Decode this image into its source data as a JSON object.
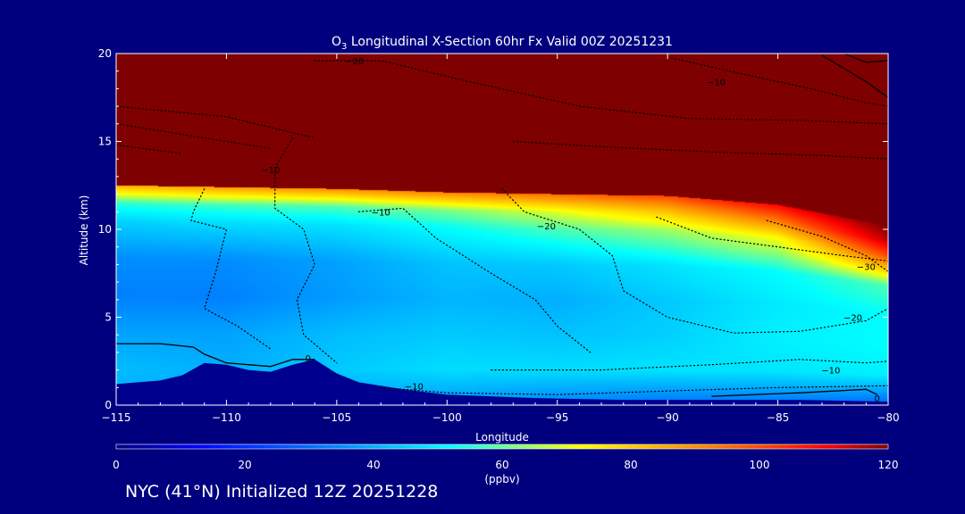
{
  "chart_data": {
    "type": "heatmap",
    "title_prefix": "O",
    "title_subscript": "3",
    "title_rest": " Longitudinal X-Section 60hr  Fx Valid 00Z 20251231",
    "xlabel": "Longitude",
    "ylabel": "Altitude (km)",
    "xlim": [
      -115,
      -80
    ],
    "ylim": [
      0,
      20
    ],
    "x_ticks": [
      -115,
      -110,
      -105,
      -100,
      -95,
      -90,
      -85,
      -80
    ],
    "x_tick_labels": [
      "−115",
      "−110",
      "−105",
      "−100",
      "−95",
      "−90",
      "−85",
      "−80"
    ],
    "y_ticks": [
      0,
      5,
      10,
      15,
      20
    ],
    "y_tick_labels": [
      "0",
      "5",
      "10",
      "15",
      "20"
    ],
    "colorbar": {
      "min": 0,
      "max": 120,
      "ticks": [
        0,
        20,
        40,
        60,
        80,
        100,
        120
      ],
      "tick_labels": [
        "0",
        "20",
        "40",
        "60",
        "80",
        "100",
        "120"
      ],
      "unit_label": "(ppbv)",
      "stops": [
        {
          "v": 0,
          "c": "#00007f"
        },
        {
          "v": 13,
          "c": "#0000ff"
        },
        {
          "v": 33,
          "c": "#0080ff"
        },
        {
          "v": 52,
          "c": "#00ffff"
        },
        {
          "v": 72,
          "c": "#ffff00"
        },
        {
          "v": 92,
          "c": "#ff8000"
        },
        {
          "v": 110,
          "c": "#ff0000"
        },
        {
          "v": 120,
          "c": "#7f0000"
        }
      ]
    },
    "ozone_field": {
      "description_note": "ozone mixing ratio (ppbv) estimated on a lon/alt grid",
      "tropopause_km": [
        {
          "lon": -115,
          "alt": 12.5
        },
        {
          "lon": -110,
          "alt": 12.4
        },
        {
          "lon": -105,
          "alt": 12.3
        },
        {
          "lon": -100,
          "alt": 12.1
        },
        {
          "lon": -95,
          "alt": 12.0
        },
        {
          "lon": -90,
          "alt": 11.9
        },
        {
          "lon": -85,
          "alt": 11.4
        },
        {
          "lon": -80,
          "alt": 10.2
        }
      ],
      "stratosphere_value": 125,
      "profiles": [
        {
          "lon": -115,
          "alt": [
            0,
            2,
            4,
            6,
            8,
            10,
            11,
            12
          ],
          "val": [
            40,
            42,
            38,
            33,
            35,
            45,
            55,
            85
          ]
        },
        {
          "lon": -110,
          "alt": [
            0,
            2,
            4,
            6,
            8,
            10,
            11,
            12
          ],
          "val": [
            38,
            40,
            38,
            33,
            35,
            47,
            57,
            88
          ]
        },
        {
          "lon": -105,
          "alt": [
            0,
            2,
            4,
            6,
            8,
            10,
            11,
            12
          ],
          "val": [
            38,
            44,
            42,
            37,
            38,
            48,
            58,
            90
          ]
        },
        {
          "lon": -100,
          "alt": [
            0,
            2,
            4,
            6,
            8,
            10,
            11,
            12
          ],
          "val": [
            36,
            47,
            44,
            41,
            43,
            52,
            62,
            92
          ]
        },
        {
          "lon": -95,
          "alt": [
            0,
            2,
            4,
            6,
            8,
            10,
            11,
            12
          ],
          "val": [
            33,
            47,
            43,
            40,
            44,
            58,
            70,
            95
          ]
        },
        {
          "lon": -90,
          "alt": [
            0,
            2,
            4,
            6,
            8,
            10,
            11,
            12
          ],
          "val": [
            30,
            48,
            45,
            44,
            48,
            64,
            80,
            100
          ]
        },
        {
          "lon": -85,
          "alt": [
            0,
            2,
            4,
            6,
            8,
            10,
            11,
            12
          ],
          "val": [
            30,
            48,
            50,
            49,
            52,
            72,
            92,
            110
          ]
        },
        {
          "lon": -80,
          "alt": [
            0,
            2,
            4,
            6,
            8,
            10,
            11,
            12
          ],
          "val": [
            28,
            50,
            52,
            52,
            58,
            100,
            115,
            120
          ]
        }
      ]
    },
    "terrain_km": [
      {
        "lon": -115,
        "alt": 1.2
      },
      {
        "lon": -114,
        "alt": 1.3
      },
      {
        "lon": -113,
        "alt": 1.4
      },
      {
        "lon": -112,
        "alt": 1.7
      },
      {
        "lon": -111,
        "alt": 2.4
      },
      {
        "lon": -110,
        "alt": 2.3
      },
      {
        "lon": -109,
        "alt": 2.0
      },
      {
        "lon": -108,
        "alt": 1.9
      },
      {
        "lon": -107,
        "alt": 2.3
      },
      {
        "lon": -106,
        "alt": 2.6
      },
      {
        "lon": -105,
        "alt": 1.8
      },
      {
        "lon": -104,
        "alt": 1.3
      },
      {
        "lon": -102,
        "alt": 0.9
      },
      {
        "lon": -100,
        "alt": 0.6
      },
      {
        "lon": -96,
        "alt": 0.4
      },
      {
        "lon": -92,
        "alt": 0.3
      },
      {
        "lon": -88,
        "alt": 0.3
      },
      {
        "lon": -84,
        "alt": 0.3
      },
      {
        "lon": -80,
        "alt": 0.2
      }
    ],
    "contour_lines": [
      {
        "style": "solid",
        "points": [
          {
            "lon": -115,
            "alt": 3.5
          },
          {
            "lon": -113,
            "alt": 3.5
          },
          {
            "lon": -111.5,
            "alt": 3.3
          },
          {
            "lon": -111,
            "alt": 2.9
          },
          {
            "lon": -110,
            "alt": 2.4
          },
          {
            "lon": -109,
            "alt": 2.3
          },
          {
            "lon": -108,
            "alt": 2.2
          },
          {
            "lon": -107,
            "alt": 2.6
          },
          {
            "lon": -106,
            "alt": 2.6
          }
        ]
      },
      {
        "style": "solid",
        "points": [
          {
            "lon": -88,
            "alt": 0.5
          },
          {
            "lon": -84,
            "alt": 0.7
          },
          {
            "lon": -81,
            "alt": 0.9
          },
          {
            "lon": -80.5,
            "alt": 0.6
          }
        ]
      },
      {
        "style": "solid",
        "points": [
          {
            "lon": -82,
            "alt": 20
          },
          {
            "lon": -81,
            "alt": 19.5
          },
          {
            "lon": -80,
            "alt": 19.6
          }
        ]
      },
      {
        "style": "solid",
        "points": [
          {
            "lon": -83,
            "alt": 19.9
          },
          {
            "lon": -81,
            "alt": 18.4
          },
          {
            "lon": -80,
            "alt": 17.5
          }
        ]
      },
      {
        "style": "dotted",
        "points": [
          {
            "lon": -103,
            "alt": 1.0
          },
          {
            "lon": -100,
            "alt": 0.7
          },
          {
            "lon": -95,
            "alt": 0.6
          },
          {
            "lon": -90,
            "alt": 0.8
          },
          {
            "lon": -85,
            "alt": 1.0
          },
          {
            "lon": -80,
            "alt": 1.1
          }
        ]
      },
      {
        "style": "dotted",
        "points": [
          {
            "lon": -111,
            "alt": 12.3
          },
          {
            "lon": -111.5,
            "alt": 11.0
          },
          {
            "lon": -111.6,
            "alt": 10.5
          },
          {
            "lon": -110,
            "alt": 10.0
          },
          {
            "lon": -110.5,
            "alt": 7.5
          },
          {
            "lon": -111,
            "alt": 5.5
          },
          {
            "lon": -109.5,
            "alt": 4.5
          },
          {
            "lon": -108,
            "alt": 3.2
          }
        ]
      },
      {
        "style": "dotted",
        "points": [
          {
            "lon": -107,
            "alt": 15.2
          },
          {
            "lon": -107.8,
            "alt": 13.5
          },
          {
            "lon": -107.8,
            "alt": 11.2
          },
          {
            "lon": -106.5,
            "alt": 10.0
          },
          {
            "lon": -106,
            "alt": 8.0
          },
          {
            "lon": -106.8,
            "alt": 6.0
          },
          {
            "lon": -106.5,
            "alt": 4.0
          },
          {
            "lon": -105,
            "alt": 2.4
          }
        ]
      },
      {
        "style": "dotted",
        "points": [
          {
            "lon": -104,
            "alt": 11.0
          },
          {
            "lon": -102,
            "alt": 11.2
          },
          {
            "lon": -100.5,
            "alt": 9.5
          },
          {
            "lon": -98,
            "alt": 7.5
          },
          {
            "lon": -96,
            "alt": 6.0
          },
          {
            "lon": -95,
            "alt": 4.5
          },
          {
            "lon": -93.5,
            "alt": 3.0
          }
        ]
      },
      {
        "style": "dotted",
        "points": [
          {
            "lon": -97.5,
            "alt": 12.3
          },
          {
            "lon": -96.5,
            "alt": 11.0
          },
          {
            "lon": -94,
            "alt": 10.0
          },
          {
            "lon": -92.5,
            "alt": 8.5
          },
          {
            "lon": -92,
            "alt": 6.5
          },
          {
            "lon": -90,
            "alt": 5.0
          },
          {
            "lon": -87,
            "alt": 4.1
          },
          {
            "lon": -84,
            "alt": 4.2
          },
          {
            "lon": -81,
            "alt": 4.8
          },
          {
            "lon": -80,
            "alt": 5.5
          }
        ]
      },
      {
        "style": "dotted",
        "points": [
          {
            "lon": -90.5,
            "alt": 10.7
          },
          {
            "lon": -88,
            "alt": 9.5
          },
          {
            "lon": -85,
            "alt": 9.0
          },
          {
            "lon": -82,
            "alt": 8.5
          },
          {
            "lon": -80,
            "alt": 8.2
          }
        ]
      },
      {
        "style": "dotted",
        "points": [
          {
            "lon": -85.5,
            "alt": 10.5
          },
          {
            "lon": -83,
            "alt": 9.6
          },
          {
            "lon": -81,
            "alt": 8.5
          },
          {
            "lon": -80,
            "alt": 7.6
          }
        ]
      },
      {
        "style": "dotted",
        "points": [
          {
            "lon": -98,
            "alt": 2.0
          },
          {
            "lon": -93,
            "alt": 2.0
          },
          {
            "lon": -88,
            "alt": 2.3
          },
          {
            "lon": -84,
            "alt": 2.6
          },
          {
            "lon": -81,
            "alt": 2.4
          },
          {
            "lon": -80,
            "alt": 2.5
          }
        ]
      },
      {
        "style": "dotted",
        "points": [
          {
            "lon": -115,
            "alt": 17.0
          },
          {
            "lon": -110,
            "alt": 16.4
          },
          {
            "lon": -106,
            "alt": 15.2
          }
        ]
      },
      {
        "style": "dotted",
        "points": [
          {
            "lon": -115,
            "alt": 16.0
          },
          {
            "lon": -111,
            "alt": 15.2
          },
          {
            "lon": -108,
            "alt": 14.6
          }
        ]
      },
      {
        "style": "dotted",
        "points": [
          {
            "lon": -115,
            "alt": 14.8
          },
          {
            "lon": -112,
            "alt": 14.3
          }
        ]
      },
      {
        "style": "dotted",
        "points": [
          {
            "lon": -106,
            "alt": 19.6
          },
          {
            "lon": -103,
            "alt": 19.6
          },
          {
            "lon": -99,
            "alt": 18.4
          },
          {
            "lon": -94,
            "alt": 17.0
          },
          {
            "lon": -89,
            "alt": 16.3
          },
          {
            "lon": -84,
            "alt": 16.2
          },
          {
            "lon": -80,
            "alt": 16.0
          }
        ]
      },
      {
        "style": "dotted",
        "points": [
          {
            "lon": -97,
            "alt": 15.0
          },
          {
            "lon": -93,
            "alt": 14.7
          },
          {
            "lon": -88,
            "alt": 14.4
          },
          {
            "lon": -83,
            "alt": 14.2
          },
          {
            "lon": -80,
            "alt": 14.0
          }
        ]
      },
      {
        "style": "dotted",
        "points": [
          {
            "lon": -90,
            "alt": 19.8
          },
          {
            "lon": -86.5,
            "alt": 18.8
          },
          {
            "lon": -83.5,
            "alt": 18.0
          },
          {
            "lon": -81,
            "alt": 17.2
          },
          {
            "lon": -80,
            "alt": 17.0
          }
        ]
      }
    ],
    "contour_labels": [
      {
        "lon": -104.2,
        "alt": 19.6,
        "text": "−20"
      },
      {
        "lon": -87.8,
        "alt": 18.4,
        "text": "−10"
      },
      {
        "lon": -108,
        "alt": 13.4,
        "text": "−10"
      },
      {
        "lon": -103,
        "alt": 11.0,
        "text": "−10"
      },
      {
        "lon": -95.5,
        "alt": 10.2,
        "text": "−20"
      },
      {
        "lon": -81,
        "alt": 7.9,
        "text": "−30"
      },
      {
        "lon": -81.6,
        "alt": 5.0,
        "text": "−20"
      },
      {
        "lon": -82.6,
        "alt": 2.0,
        "text": "−10"
      },
      {
        "lon": -101.5,
        "alt": 1.1,
        "text": "−10"
      },
      {
        "lon": -106.3,
        "alt": 2.7,
        "text": "0"
      },
      {
        "lon": -80.5,
        "alt": 0.4,
        "text": "0"
      }
    ]
  },
  "footer": {
    "caption": "NYC (41°N) Initialized 12Z 20251228"
  }
}
